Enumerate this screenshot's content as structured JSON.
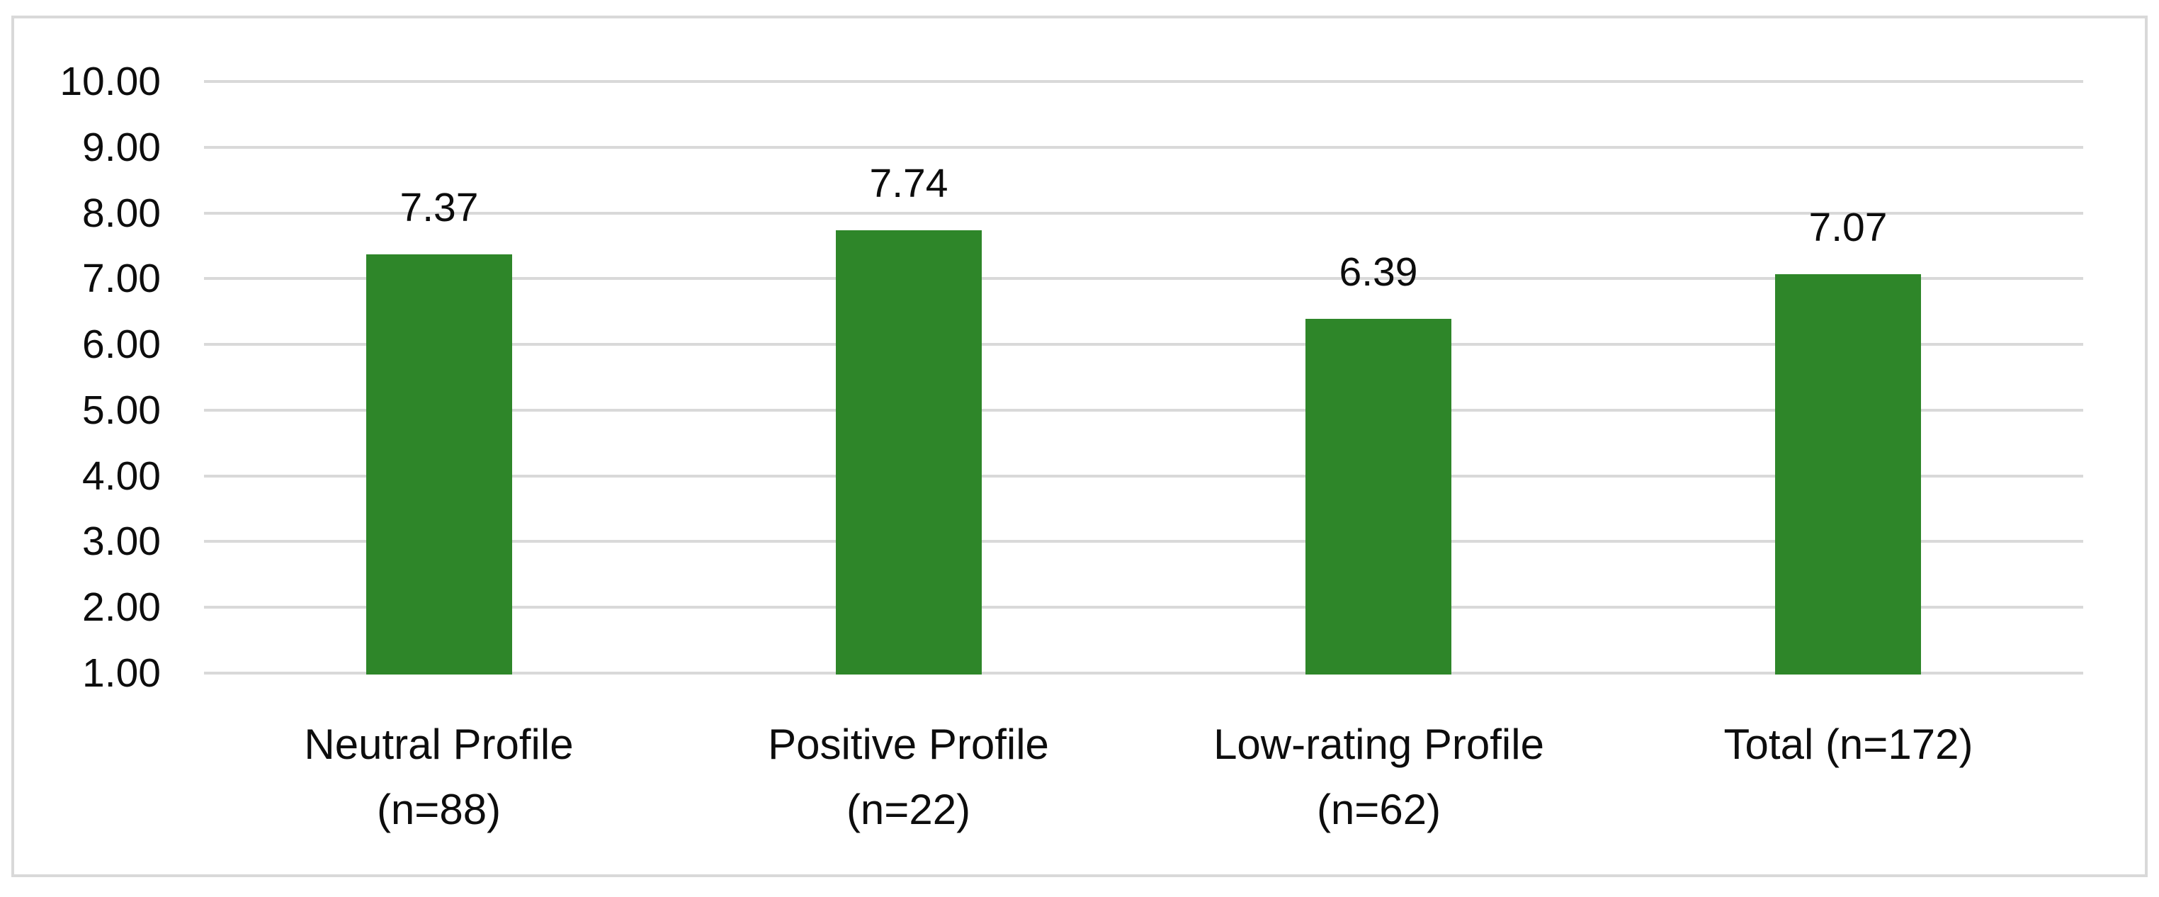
{
  "chart_data": {
    "type": "bar",
    "title": "",
    "xlabel": "",
    "ylabel": "",
    "categories": [
      "Neutral Profile\n(n=88)",
      "Positive Profile\n(n=22)",
      "Low-rating Profile\n(n=62)",
      "Total (n=172)"
    ],
    "values": [
      7.37,
      7.74,
      6.39,
      7.07
    ],
    "data_labels": [
      "7.37",
      "7.74",
      "6.39",
      "7.07"
    ],
    "y_ticks": [
      "10.00",
      "9.00",
      "8.00",
      "7.00",
      "6.00",
      "5.00",
      "4.00",
      "3.00",
      "2.00",
      "1.00"
    ],
    "y_tick_values": [
      10,
      9,
      8,
      7,
      6,
      5,
      4,
      3,
      2,
      1
    ],
    "ylim": [
      1,
      10
    ],
    "grid": true,
    "legend": false,
    "bar_color": "#2E8629",
    "gridline_color": "#D9D9D9",
    "frame_border_color": "#D9D9D9",
    "label_color": "#0D0D0D"
  }
}
